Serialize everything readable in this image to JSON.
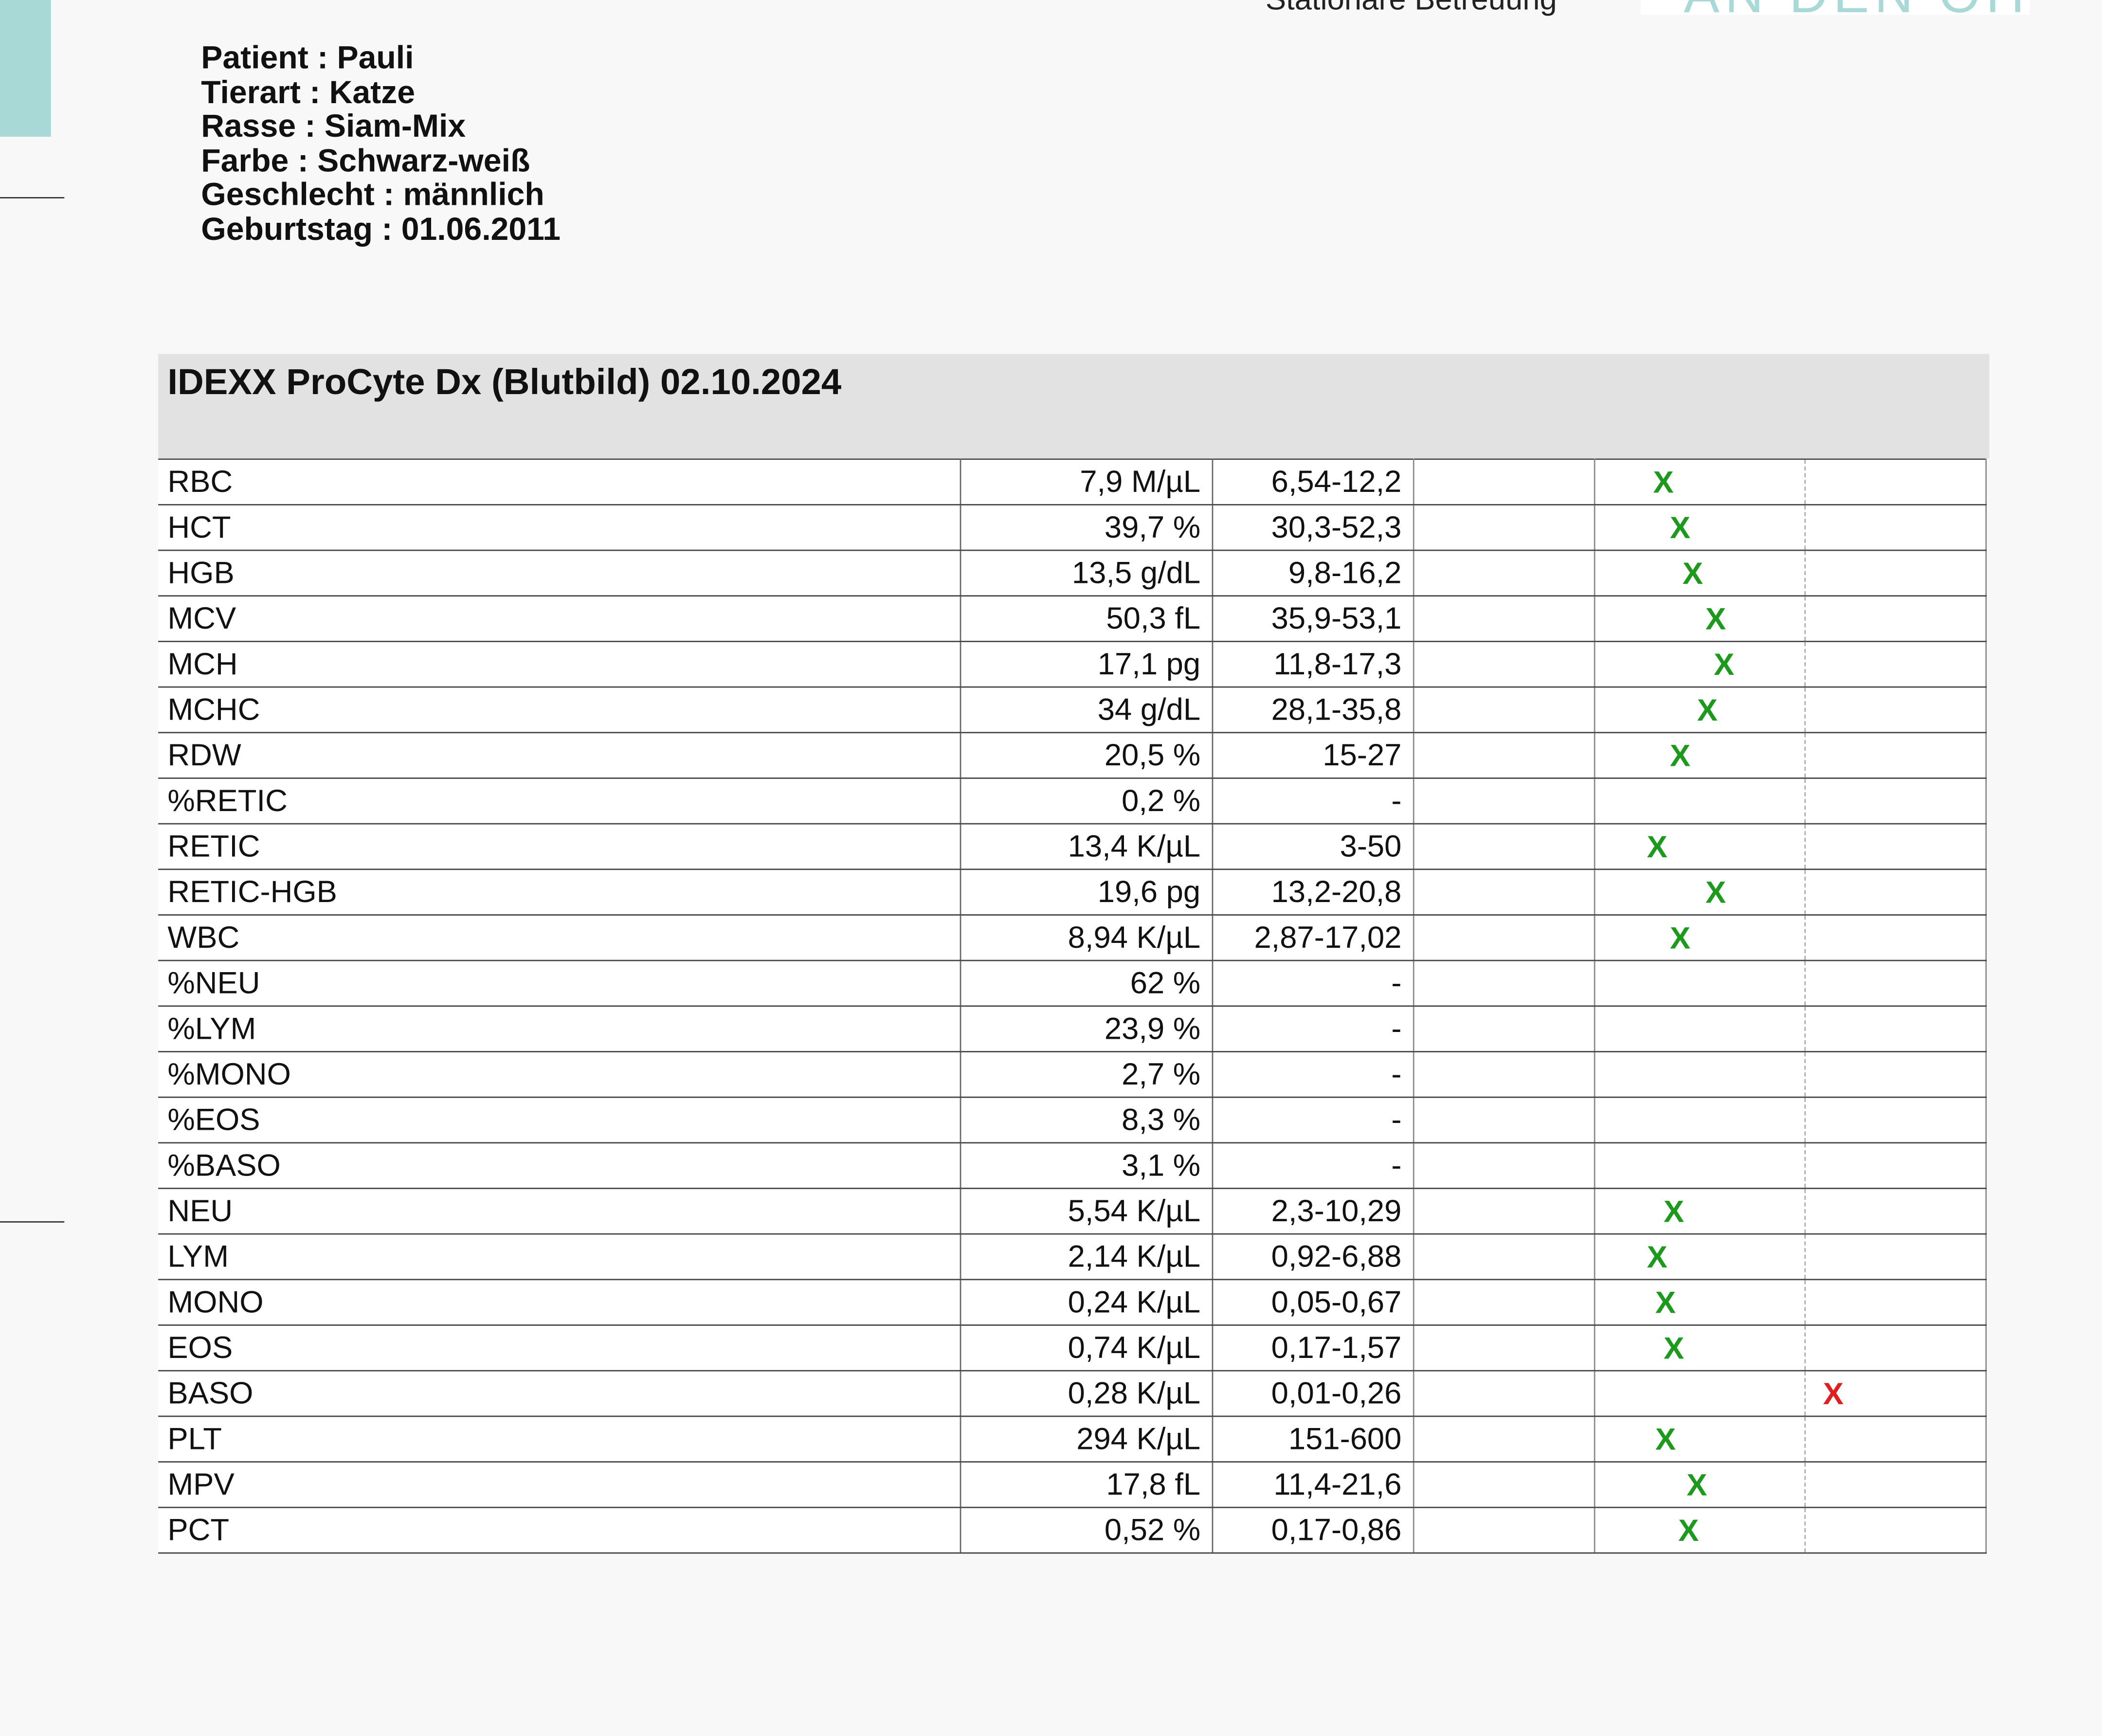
{
  "header": {
    "top_left_text": "Stationäre Betreuung",
    "top_right_text": "AN DEN OHREN"
  },
  "patient": {
    "lines": [
      "Patient : Pauli",
      "Tierart : Katze",
      "Rasse : Siam-Mix",
      "Farbe : Schwarz-weiß",
      "Geschlecht : männlich",
      "Geburtstag : 01.06.2011"
    ]
  },
  "report": {
    "title": "IDEXX ProCyte Dx (Blutbild) 02.10.2024",
    "colors": {
      "ok_mark": "#1d9a1d",
      "high_mark": "#e02020",
      "header_bg": "#e2e2e2"
    },
    "rows": [
      {
        "name": "RBC",
        "value": "7,9 M/µL",
        "ref": "6,54-12,2",
        "mark": "X",
        "status": "normal",
        "position": 0.28
      },
      {
        "name": "HCT",
        "value": "39,7 %",
        "ref": "30,3-52,3",
        "mark": "X",
        "status": "normal",
        "position": 0.36
      },
      {
        "name": "HGB",
        "value": "13,5 g/dL",
        "ref": "9,8-16,2",
        "mark": "X",
        "status": "normal",
        "position": 0.42
      },
      {
        "name": "MCV",
        "value": "50,3 fL",
        "ref": "35,9-53,1",
        "mark": "X",
        "status": "normal",
        "position": 0.53
      },
      {
        "name": "MCH",
        "value": "17,1 pg",
        "ref": "11,8-17,3",
        "mark": "X",
        "status": "normal",
        "position": 0.57
      },
      {
        "name": "MCHC",
        "value": "34 g/dL",
        "ref": "28,1-35,8",
        "mark": "X",
        "status": "normal",
        "position": 0.49
      },
      {
        "name": "RDW",
        "value": "20,5 %",
        "ref": "15-27",
        "mark": "X",
        "status": "normal",
        "position": 0.36
      },
      {
        "name": "%RETIC",
        "value": "0,2 %",
        "ref": "-",
        "mark": "",
        "status": "none",
        "position": null
      },
      {
        "name": "RETIC",
        "value": "13,4 K/µL",
        "ref": "3-50",
        "mark": "X",
        "status": "normal",
        "position": 0.25
      },
      {
        "name": "RETIC-HGB",
        "value": "19,6 pg",
        "ref": "13,2-20,8",
        "mark": "X",
        "status": "normal",
        "position": 0.53
      },
      {
        "name": "WBC",
        "value": "8,94 K/µL",
        "ref": "2,87-17,02",
        "mark": "X",
        "status": "normal",
        "position": 0.36
      },
      {
        "name": "%NEU",
        "value": "62 %",
        "ref": "-",
        "mark": "",
        "status": "none",
        "position": null
      },
      {
        "name": "%LYM",
        "value": "23,9 %",
        "ref": "-",
        "mark": "",
        "status": "none",
        "position": null
      },
      {
        "name": "%MONO",
        "value": "2,7 %",
        "ref": "-",
        "mark": "",
        "status": "none",
        "position": null
      },
      {
        "name": "%EOS",
        "value": "8,3 %",
        "ref": "-",
        "mark": "",
        "status": "none",
        "position": null
      },
      {
        "name": "%BASO",
        "value": "3,1 %",
        "ref": "-",
        "mark": "",
        "status": "none",
        "position": null
      },
      {
        "name": "NEU",
        "value": "5,54 K/µL",
        "ref": "2,3-10,29",
        "mark": "X",
        "status": "normal",
        "position": 0.33
      },
      {
        "name": "LYM",
        "value": "2,14 K/µL",
        "ref": "0,92-6,88",
        "mark": "X",
        "status": "normal",
        "position": 0.25
      },
      {
        "name": "MONO",
        "value": "0,24 K/µL",
        "ref": "0,05-0,67",
        "mark": "X",
        "status": "normal",
        "position": 0.29
      },
      {
        "name": "EOS",
        "value": "0,74 K/µL",
        "ref": "0,17-1,57",
        "mark": "X",
        "status": "normal",
        "position": 0.33
      },
      {
        "name": "BASO",
        "value": "0,28 K/µL",
        "ref": "0,01-0,26",
        "mark": "X",
        "status": "high",
        "position": 0.1
      },
      {
        "name": "PLT",
        "value": "294 K/µL",
        "ref": "151-600",
        "mark": "X",
        "status": "normal",
        "position": 0.29
      },
      {
        "name": "MPV",
        "value": "17,8 fL",
        "ref": "11,4-21,6",
        "mark": "X",
        "status": "normal",
        "position": 0.44
      },
      {
        "name": "PCT",
        "value": "0,52 %",
        "ref": "0,17-0,86",
        "mark": "X",
        "status": "normal",
        "position": 0.4
      }
    ]
  }
}
